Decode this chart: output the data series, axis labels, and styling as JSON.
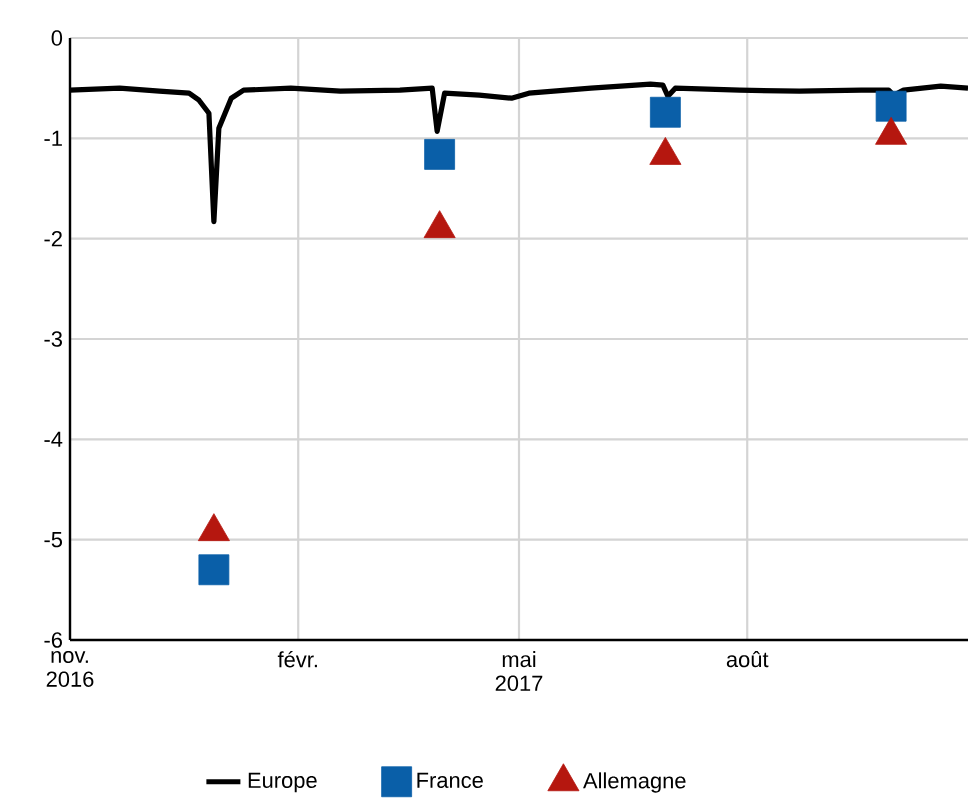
{
  "chart_data": {
    "type": "line",
    "xlim": [
      "2016-11-01",
      "2017-10-29"
    ],
    "xticks": [
      {
        "value": "2016-11-01",
        "label": "nov. 2016"
      },
      {
        "value": "2017-02-01",
        "label": "févr."
      },
      {
        "value": "2017-05-01",
        "label": "mai 2017"
      },
      {
        "value": "2017-08-01",
        "label": "août"
      }
    ],
    "ylim": [
      -6,
      0
    ],
    "yticks": [
      0,
      -1,
      -2,
      -3,
      -4,
      -5,
      -6
    ],
    "grid": true,
    "legend": "bottom",
    "series": [
      {
        "name": "Europe",
        "color": "#000000",
        "marker": "none",
        "line_style": "solid",
        "x": [
          "2016-11-01",
          "2016-11-21",
          "2016-12-07",
          "2016-12-19",
          "2016-12-23",
          "2016-12-27",
          "2016-12-29",
          "2016-12-31",
          "2017-01-05",
          "2017-01-10",
          "2017-01-29",
          "2017-02-18",
          "2017-03-14",
          "2017-03-27",
          "2017-03-29",
          "2017-04-01",
          "2017-04-15",
          "2017-04-28",
          "2017-05-05",
          "2017-05-30",
          "2017-06-23",
          "2017-06-28",
          "2017-06-30",
          "2017-07-03",
          "2017-07-29",
          "2017-08-22",
          "2017-09-16",
          "2017-09-27",
          "2017-09-29",
          "2017-10-03",
          "2017-10-18",
          "2017-10-29"
        ],
        "values": [
          -0.52,
          -0.5,
          -0.53,
          -0.55,
          -0.62,
          -0.75,
          -1.83,
          -0.9,
          -0.6,
          -0.52,
          -0.5,
          -0.53,
          -0.52,
          -0.5,
          -0.93,
          -0.55,
          -0.57,
          -0.6,
          -0.55,
          -0.5,
          -0.46,
          -0.47,
          -0.58,
          -0.5,
          -0.52,
          -0.53,
          -0.52,
          -0.52,
          -0.57,
          -0.52,
          -0.48,
          -0.5
        ]
      },
      {
        "name": "France",
        "type": "scatter",
        "color": "#0a5fa8",
        "marker": "square",
        "x": [
          "2016-12-29",
          "2017-03-30",
          "2017-06-29",
          "2017-09-28"
        ],
        "values": [
          -5.3,
          -1.16,
          -0.74,
          -0.68
        ]
      },
      {
        "name": "Allemagne",
        "type": "scatter",
        "color": "#b5170f",
        "marker": "triangle",
        "x": [
          "2016-12-29",
          "2017-03-30",
          "2017-06-29",
          "2017-09-28"
        ],
        "values": [
          -4.92,
          -1.9,
          -1.17,
          -0.97
        ]
      }
    ]
  }
}
